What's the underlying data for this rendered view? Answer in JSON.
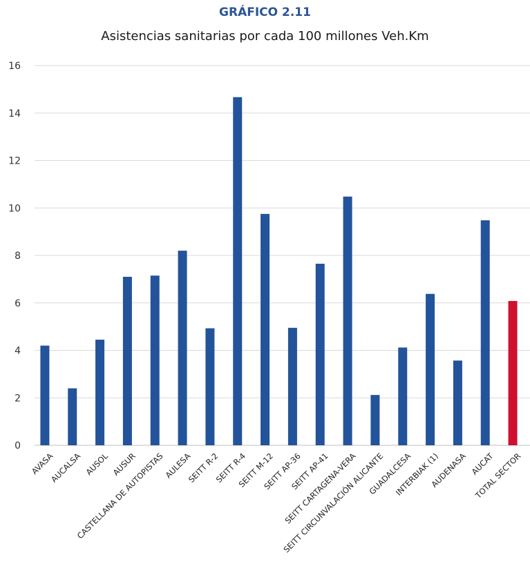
{
  "header": {
    "kicker": "GRÁFICO 2.11",
    "title": "Asistencias sanitarias por cada 100 millones Veh.Km"
  },
  "chart_data": {
    "type": "bar",
    "title": "Asistencias sanitarias por cada 100 millones Veh.Km",
    "xlabel": "",
    "ylabel": "",
    "ylim": [
      0,
      16
    ],
    "yticks": [
      0,
      2,
      4,
      6,
      8,
      10,
      12,
      14,
      16
    ],
    "grid": true,
    "legend": "none",
    "categories": [
      "AVASA",
      "AUCALSA",
      "AUSOL",
      "AUSUR",
      "CASTELLANA DE AUTOPISTAS",
      "AULESA",
      "SEITT R-2",
      "SEITT R-4",
      "SEITT M-12",
      "SEITT AP-36",
      "SEITT AP-41",
      "SEITT CARTAGENA-VERA",
      "SEITT CIRCUNVALACIÓN ALICANTE",
      "GUADALCESA",
      "INTERBIAK (1)",
      "AUDENASA",
      "AUCAT",
      "TOTAL SECTOR"
    ],
    "values": [
      4.2,
      2.4,
      4.45,
      7.1,
      7.15,
      8.2,
      4.93,
      14.67,
      9.75,
      4.95,
      7.65,
      10.48,
      2.12,
      4.12,
      6.38,
      3.57,
      9.48,
      6.08
    ],
    "colors": {
      "bar": "#23539a",
      "highlight": "#d0102f",
      "highlight_category": "TOTAL SECTOR"
    }
  }
}
